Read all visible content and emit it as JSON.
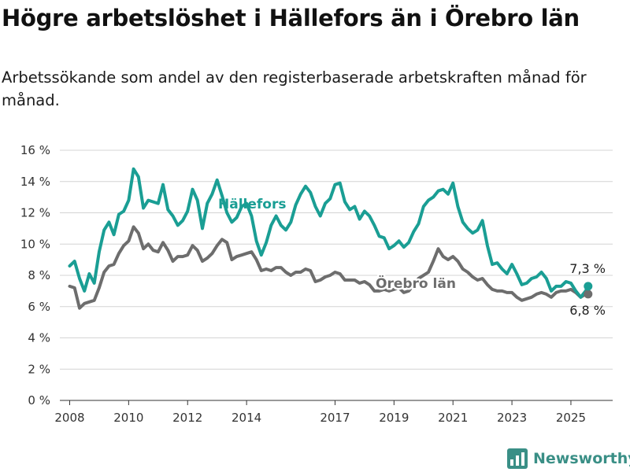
{
  "title": "Högre arbetslöshet i Hällefors än i Örebro län",
  "subtitle": "Arbetssökande som andel av den registerbaserade arbetskraften månad för månad.",
  "brand": {
    "name": "Newsworthy",
    "icon": "bar-chart-logo-icon"
  },
  "colors": {
    "hallefors": "#1a9e94",
    "orebro": "#6d6d6d",
    "grid": "#d4d4d4",
    "axis": "#333333",
    "brand": "#3a8f86"
  },
  "chart_data": {
    "type": "line",
    "y_ticks": [
      "0 %",
      "2 %",
      "4 %",
      "6 %",
      "8 %",
      "10 %",
      "12 %",
      "14 %",
      "16 %"
    ],
    "y_tick_values": [
      0,
      2,
      4,
      6,
      8,
      10,
      12,
      14,
      16
    ],
    "ylim": [
      0,
      16
    ],
    "x_ticks": [
      "2008",
      "2010",
      "2012",
      "2014",
      "2017",
      "2019",
      "2021",
      "2023",
      "2025"
    ],
    "x_tick_values": [
      "2008-01",
      "2010-01",
      "2012-01",
      "2014-01",
      "2017-01",
      "2019-01",
      "2021-01",
      "2023-01",
      "2025-01"
    ],
    "xlim": [
      "2007-09",
      "2026-06"
    ],
    "grid": "horizontal",
    "legend": "inline labels",
    "end_labels": [
      "7,3 %",
      "6,8 %"
    ],
    "series": [
      {
        "name": "Hällefors",
        "color": "#1a9e94",
        "points": [
          [
            "2008-01",
            8.6
          ],
          [
            "2008-03",
            8.9
          ],
          [
            "2008-05",
            7.8
          ],
          [
            "2008-07",
            7.0
          ],
          [
            "2008-09",
            8.1
          ],
          [
            "2008-11",
            7.5
          ],
          [
            "2009-01",
            9.5
          ],
          [
            "2009-03",
            10.9
          ],
          [
            "2009-05",
            11.4
          ],
          [
            "2009-07",
            10.6
          ],
          [
            "2009-09",
            11.9
          ],
          [
            "2009-11",
            12.1
          ],
          [
            "2010-01",
            12.8
          ],
          [
            "2010-03",
            14.8
          ],
          [
            "2010-05",
            14.3
          ],
          [
            "2010-07",
            12.3
          ],
          [
            "2010-09",
            12.8
          ],
          [
            "2010-11",
            12.7
          ],
          [
            "2011-01",
            12.6
          ],
          [
            "2011-03",
            13.8
          ],
          [
            "2011-05",
            12.2
          ],
          [
            "2011-07",
            11.8
          ],
          [
            "2011-09",
            11.2
          ],
          [
            "2011-11",
            11.5
          ],
          [
            "2012-01",
            12.1
          ],
          [
            "2012-03",
            13.5
          ],
          [
            "2012-05",
            12.8
          ],
          [
            "2012-07",
            11.0
          ],
          [
            "2012-09",
            12.6
          ],
          [
            "2012-11",
            13.2
          ],
          [
            "2013-01",
            14.1
          ],
          [
            "2013-03",
            13.1
          ],
          [
            "2013-05",
            12.0
          ],
          [
            "2013-07",
            11.4
          ],
          [
            "2013-09",
            11.7
          ],
          [
            "2013-11",
            12.4
          ],
          [
            "2014-01",
            12.6
          ],
          [
            "2014-03",
            11.8
          ],
          [
            "2014-05",
            10.2
          ],
          [
            "2014-07",
            9.3
          ],
          [
            "2014-09",
            10.1
          ],
          [
            "2014-11",
            11.2
          ],
          [
            "2015-01",
            11.8
          ],
          [
            "2015-03",
            11.2
          ],
          [
            "2015-05",
            10.9
          ],
          [
            "2015-07",
            11.4
          ],
          [
            "2015-09",
            12.5
          ],
          [
            "2015-11",
            13.2
          ],
          [
            "2016-01",
            13.7
          ],
          [
            "2016-03",
            13.3
          ],
          [
            "2016-05",
            12.4
          ],
          [
            "2016-07",
            11.8
          ],
          [
            "2016-09",
            12.6
          ],
          [
            "2016-11",
            12.9
          ],
          [
            "2017-01",
            13.8
          ],
          [
            "2017-03",
            13.9
          ],
          [
            "2017-05",
            12.7
          ],
          [
            "2017-07",
            12.2
          ],
          [
            "2017-09",
            12.4
          ],
          [
            "2017-11",
            11.6
          ],
          [
            "2018-01",
            12.1
          ],
          [
            "2018-03",
            11.8
          ],
          [
            "2018-05",
            11.2
          ],
          [
            "2018-07",
            10.5
          ],
          [
            "2018-09",
            10.4
          ],
          [
            "2018-11",
            9.7
          ],
          [
            "2019-01",
            9.9
          ],
          [
            "2019-03",
            10.2
          ],
          [
            "2019-05",
            9.8
          ],
          [
            "2019-07",
            10.1
          ],
          [
            "2019-09",
            10.8
          ],
          [
            "2019-11",
            11.3
          ],
          [
            "2020-01",
            12.4
          ],
          [
            "2020-03",
            12.8
          ],
          [
            "2020-05",
            13.0
          ],
          [
            "2020-07",
            13.4
          ],
          [
            "2020-09",
            13.5
          ],
          [
            "2020-11",
            13.2
          ],
          [
            "2021-01",
            13.9
          ],
          [
            "2021-03",
            12.4
          ],
          [
            "2021-05",
            11.4
          ],
          [
            "2021-07",
            11.0
          ],
          [
            "2021-09",
            10.7
          ],
          [
            "2021-11",
            10.9
          ],
          [
            "2022-01",
            11.5
          ],
          [
            "2022-03",
            9.9
          ],
          [
            "2022-05",
            8.7
          ],
          [
            "2022-07",
            8.8
          ],
          [
            "2022-09",
            8.4
          ],
          [
            "2022-11",
            8.1
          ],
          [
            "2023-01",
            8.7
          ],
          [
            "2023-03",
            8.1
          ],
          [
            "2023-05",
            7.4
          ],
          [
            "2023-07",
            7.5
          ],
          [
            "2023-09",
            7.8
          ],
          [
            "2023-11",
            7.9
          ],
          [
            "2024-01",
            8.2
          ],
          [
            "2024-03",
            7.8
          ],
          [
            "2024-05",
            7.0
          ],
          [
            "2024-07",
            7.3
          ],
          [
            "2024-09",
            7.3
          ],
          [
            "2024-11",
            7.6
          ],
          [
            "2025-01",
            7.5
          ],
          [
            "2025-03",
            7.0
          ],
          [
            "2025-05",
            6.6
          ],
          [
            "2025-07",
            7.0
          ],
          [
            "2025-08",
            7.3
          ]
        ]
      },
      {
        "name": "Örebro län",
        "color": "#6d6d6d",
        "points": [
          [
            "2008-01",
            7.3
          ],
          [
            "2008-03",
            7.2
          ],
          [
            "2008-05",
            5.9
          ],
          [
            "2008-07",
            6.2
          ],
          [
            "2008-09",
            6.3
          ],
          [
            "2008-11",
            6.4
          ],
          [
            "2009-01",
            7.2
          ],
          [
            "2009-03",
            8.2
          ],
          [
            "2009-05",
            8.6
          ],
          [
            "2009-07",
            8.7
          ],
          [
            "2009-09",
            9.4
          ],
          [
            "2009-11",
            9.9
          ],
          [
            "2010-01",
            10.2
          ],
          [
            "2010-03",
            11.1
          ],
          [
            "2010-05",
            10.7
          ],
          [
            "2010-07",
            9.7
          ],
          [
            "2010-09",
            10.0
          ],
          [
            "2010-11",
            9.6
          ],
          [
            "2011-01",
            9.5
          ],
          [
            "2011-03",
            10.1
          ],
          [
            "2011-05",
            9.6
          ],
          [
            "2011-07",
            8.9
          ],
          [
            "2011-09",
            9.2
          ],
          [
            "2011-11",
            9.2
          ],
          [
            "2012-01",
            9.3
          ],
          [
            "2012-03",
            9.9
          ],
          [
            "2012-05",
            9.6
          ],
          [
            "2012-07",
            8.9
          ],
          [
            "2012-09",
            9.1
          ],
          [
            "2012-11",
            9.4
          ],
          [
            "2013-01",
            9.9
          ],
          [
            "2013-03",
            10.3
          ],
          [
            "2013-05",
            10.1
          ],
          [
            "2013-07",
            9.0
          ],
          [
            "2013-09",
            9.2
          ],
          [
            "2013-11",
            9.3
          ],
          [
            "2014-01",
            9.4
          ],
          [
            "2014-03",
            9.5
          ],
          [
            "2014-05",
            9.0
          ],
          [
            "2014-07",
            8.3
          ],
          [
            "2014-09",
            8.4
          ],
          [
            "2014-11",
            8.3
          ],
          [
            "2015-01",
            8.5
          ],
          [
            "2015-03",
            8.5
          ],
          [
            "2015-05",
            8.2
          ],
          [
            "2015-07",
            8.0
          ],
          [
            "2015-09",
            8.2
          ],
          [
            "2015-11",
            8.2
          ],
          [
            "2016-01",
            8.4
          ],
          [
            "2016-03",
            8.3
          ],
          [
            "2016-05",
            7.6
          ],
          [
            "2016-07",
            7.7
          ],
          [
            "2016-09",
            7.9
          ],
          [
            "2016-11",
            8.0
          ],
          [
            "2017-01",
            8.2
          ],
          [
            "2017-03",
            8.1
          ],
          [
            "2017-05",
            7.7
          ],
          [
            "2017-07",
            7.7
          ],
          [
            "2017-09",
            7.7
          ],
          [
            "2017-11",
            7.5
          ],
          [
            "2018-01",
            7.6
          ],
          [
            "2018-03",
            7.4
          ],
          [
            "2018-05",
            7.0
          ],
          [
            "2018-07",
            7.0
          ],
          [
            "2018-09",
            7.1
          ],
          [
            "2018-11",
            7.0
          ],
          [
            "2019-01",
            7.1
          ],
          [
            "2019-03",
            7.2
          ],
          [
            "2019-05",
            6.9
          ],
          [
            "2019-07",
            7.0
          ],
          [
            "2019-09",
            7.4
          ],
          [
            "2019-11",
            7.8
          ],
          [
            "2020-01",
            8.0
          ],
          [
            "2020-03",
            8.2
          ],
          [
            "2020-05",
            8.9
          ],
          [
            "2020-07",
            9.7
          ],
          [
            "2020-09",
            9.2
          ],
          [
            "2020-11",
            9.0
          ],
          [
            "2021-01",
            9.2
          ],
          [
            "2021-03",
            8.9
          ],
          [
            "2021-05",
            8.4
          ],
          [
            "2021-07",
            8.2
          ],
          [
            "2021-09",
            7.9
          ],
          [
            "2021-11",
            7.7
          ],
          [
            "2022-01",
            7.8
          ],
          [
            "2022-03",
            7.4
          ],
          [
            "2022-05",
            7.1
          ],
          [
            "2022-07",
            7.0
          ],
          [
            "2022-09",
            7.0
          ],
          [
            "2022-11",
            6.9
          ],
          [
            "2023-01",
            6.9
          ],
          [
            "2023-03",
            6.6
          ],
          [
            "2023-05",
            6.4
          ],
          [
            "2023-07",
            6.5
          ],
          [
            "2023-09",
            6.6
          ],
          [
            "2023-11",
            6.8
          ],
          [
            "2024-01",
            6.9
          ],
          [
            "2024-03",
            6.8
          ],
          [
            "2024-05",
            6.6
          ],
          [
            "2024-07",
            6.9
          ],
          [
            "2024-09",
            7.0
          ],
          [
            "2024-11",
            7.0
          ],
          [
            "2025-01",
            7.1
          ],
          [
            "2025-03",
            6.9
          ],
          [
            "2025-05",
            6.6
          ],
          [
            "2025-07",
            6.8
          ],
          [
            "2025-08",
            6.8
          ]
        ]
      }
    ]
  }
}
